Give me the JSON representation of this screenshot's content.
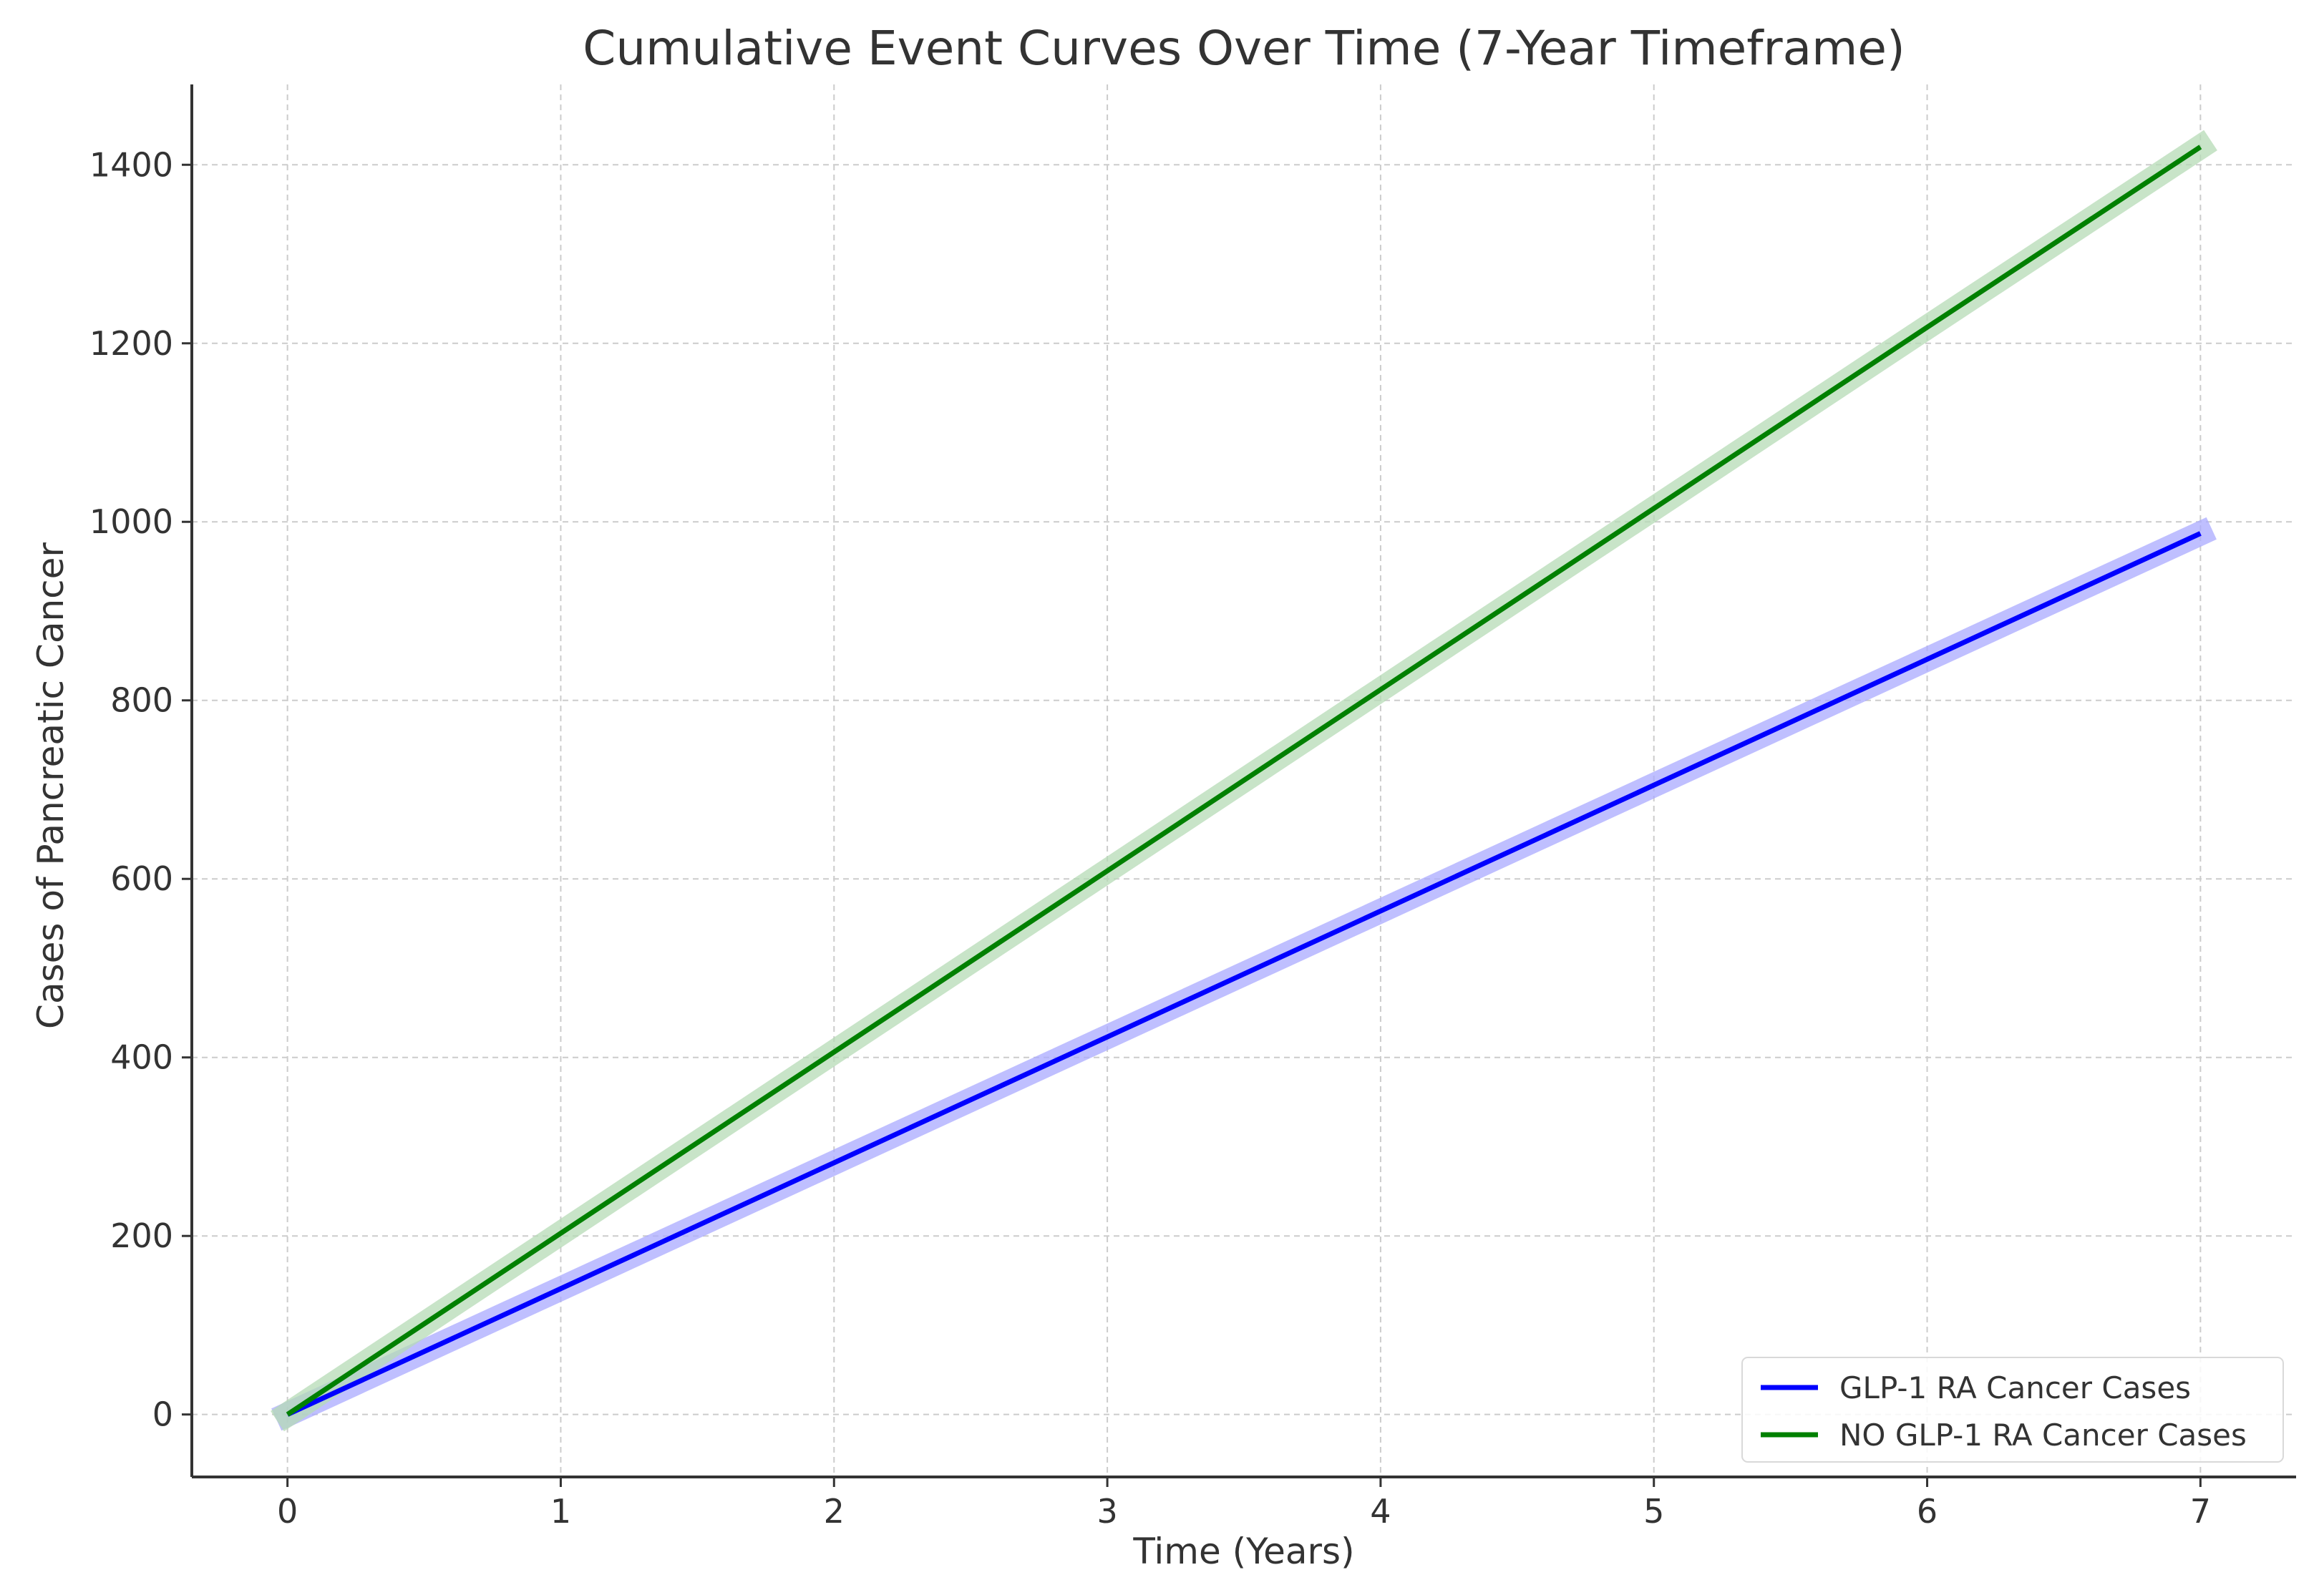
{
  "chart_data": {
    "type": "line",
    "title": "Cumulative Event Curves Over Time (7-Year Timeframe)",
    "xlabel": "Time (Years)",
    "ylabel": "Cases of Pancreatic Cancer",
    "x": [
      0,
      1,
      2,
      3,
      4,
      5,
      6,
      7
    ],
    "series": [
      {
        "name": "GLP-1 RA Cancer Cases",
        "color": "#0000ff",
        "band_color": "#aaaaff",
        "values": [
          0,
          141,
          282,
          423,
          564,
          705,
          846,
          987
        ]
      },
      {
        "name": "NO GLP-1 RA Cancer Cases",
        "color": "#008000",
        "band_color": "#b5dbb5",
        "values": [
          0,
          203,
          406,
          609,
          812,
          1015,
          1218,
          1420
        ]
      }
    ],
    "x_ticks": [
      0,
      1,
      2,
      3,
      4,
      5,
      6,
      7
    ],
    "y_ticks": [
      0,
      200,
      400,
      600,
      800,
      1000,
      1200,
      1400
    ],
    "xlim": [
      -0.35,
      7.35
    ],
    "ylim": [
      -70,
      1490
    ],
    "grid": true,
    "legend_position": "lower-right"
  }
}
